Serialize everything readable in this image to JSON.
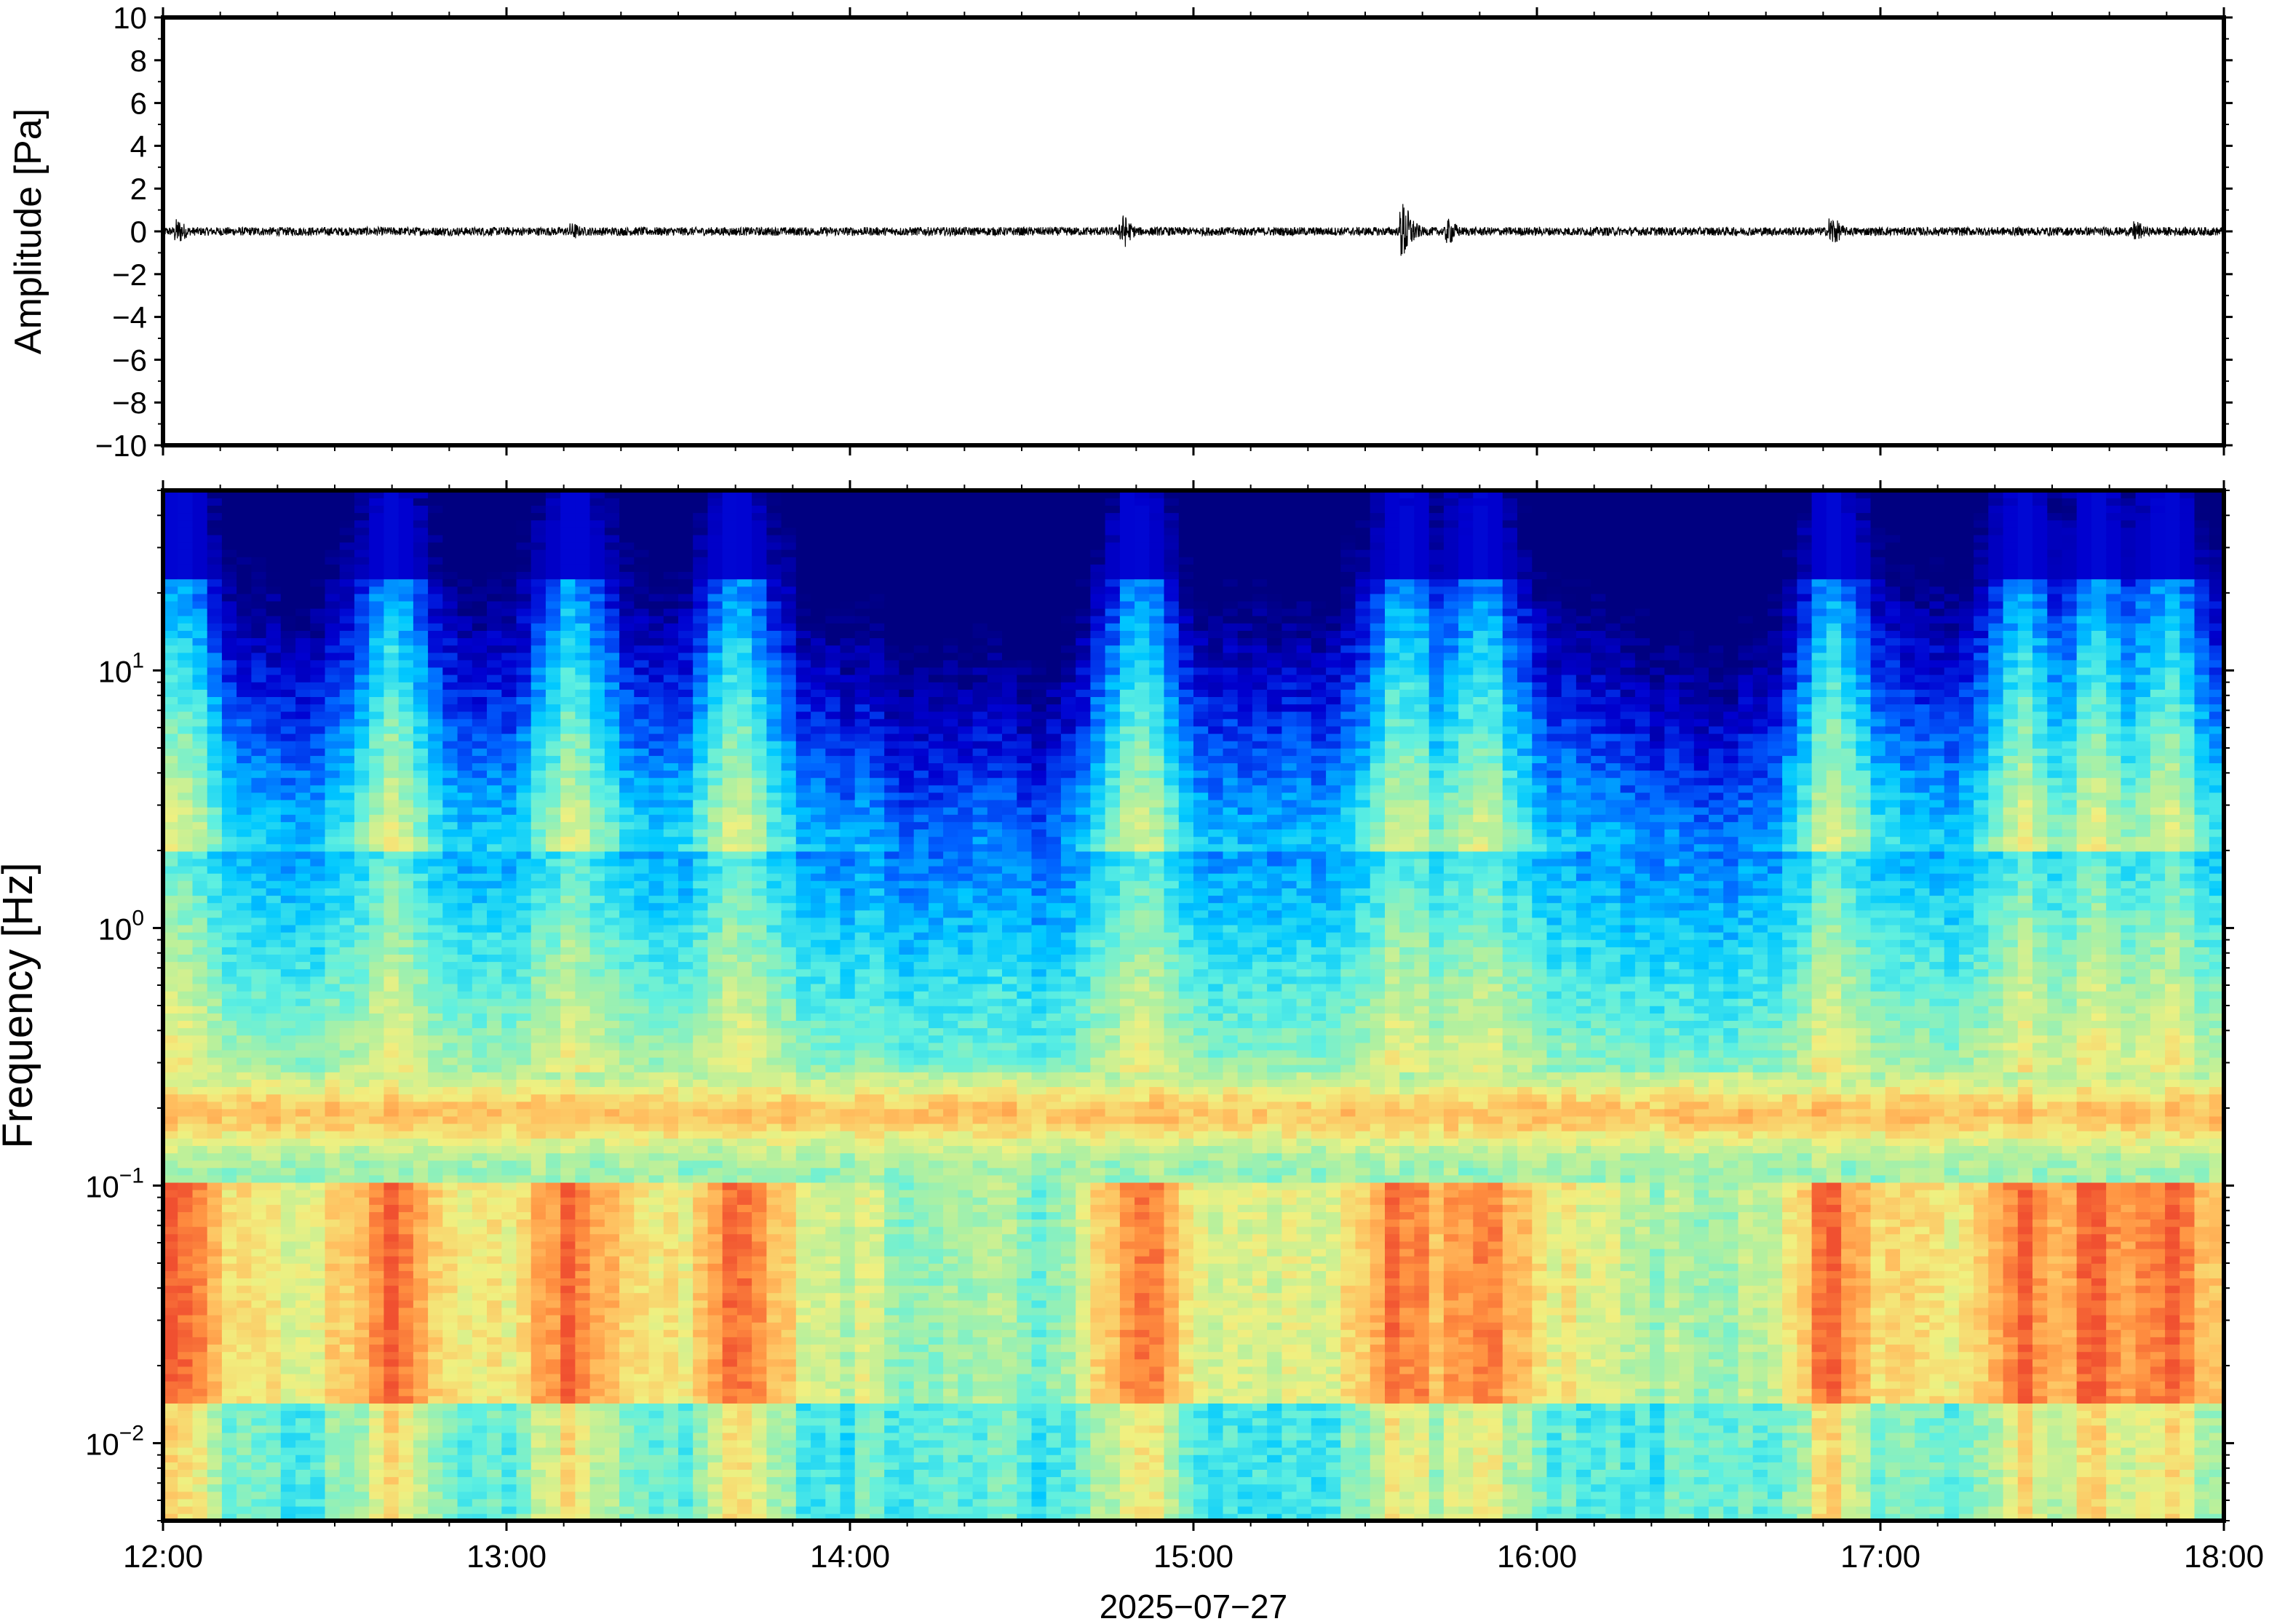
{
  "chart_data": [
    {
      "type": "line",
      "panel": "waveform",
      "ylabel": "Amplitude [Pa]",
      "ylim": [
        -10,
        10
      ],
      "yticks": [
        10,
        8,
        6,
        4,
        2,
        0,
        -2,
        -4,
        -6,
        -8,
        -10
      ],
      "ytick_labels": [
        "10",
        "8",
        "6",
        "4",
        "2",
        "0",
        "−2",
        "−4",
        "−6",
        "−8",
        "−10"
      ],
      "xlim": [
        "12:00",
        "18:00"
      ],
      "line_color": "#000000",
      "background_amplitude": 0.2,
      "bursts": [
        {
          "time": "12:03",
          "peak": 0.6
        },
        {
          "time": "13:12",
          "peak": 0.4
        },
        {
          "time": "14:48",
          "peak": 0.8
        },
        {
          "time": "15:37",
          "peak": 1.4
        },
        {
          "time": "15:45",
          "peak": 0.6
        },
        {
          "time": "16:52",
          "peak": 0.7
        },
        {
          "time": "17:45",
          "peak": 0.5
        }
      ]
    },
    {
      "type": "heatmap",
      "panel": "spectrogram",
      "ylabel": "Frequency [Hz]",
      "yscale": "log",
      "ylim_hz": [
        0.005,
        50
      ],
      "yticks_hz": [
        0.01,
        0.1,
        1,
        10
      ],
      "ytick_labels": [
        {
          "base": "10",
          "exp": "−2"
        },
        {
          "base": "10",
          "exp": "−1"
        },
        {
          "base": "10",
          "exp": "0"
        },
        {
          "base": "10",
          "exp": "1"
        }
      ],
      "xlim": [
        "12:00",
        "18:00"
      ],
      "colormap": "jet",
      "colormap_stops": [
        "#000080",
        "#0000d0",
        "#0060ff",
        "#00c8ff",
        "#5ff0e0",
        "#b0f0a0",
        "#f0f080",
        "#ffc060",
        "#ff9040",
        "#f05030"
      ],
      "active_periods": [
        "12:03",
        "12:40",
        "13:12",
        "13:40",
        "14:50",
        "15:37",
        "15:50",
        "16:52",
        "17:25",
        "17:38",
        "17:50"
      ],
      "quiet_periods": [
        "14:15",
        "14:30",
        "16:30"
      ]
    }
  ],
  "xaxis": {
    "ticks": [
      "12:00",
      "13:00",
      "14:00",
      "15:00",
      "16:00",
      "17:00",
      "18:00"
    ],
    "label": "2025−07−27"
  }
}
